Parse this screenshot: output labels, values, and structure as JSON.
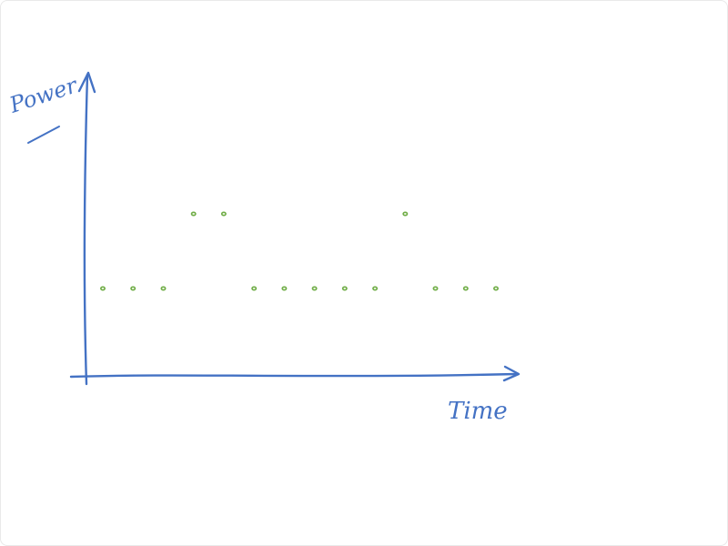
{
  "chart_data": {
    "type": "scatter",
    "title": "",
    "xlabel": "Time",
    "ylabel": "Power",
    "ink_color": "#4472c4",
    "point_color": "#70ad47",
    "grid": false,
    "x": [
      1,
      2,
      3,
      4,
      5,
      6,
      7,
      8,
      9,
      10,
      11,
      12,
      13,
      14
    ],
    "y": [
      1,
      1,
      1,
      2,
      2,
      1,
      1,
      1,
      1,
      1,
      2,
      1,
      1,
      1
    ],
    "xlim": [
      0,
      15
    ],
    "ylim": [
      0,
      3
    ]
  }
}
